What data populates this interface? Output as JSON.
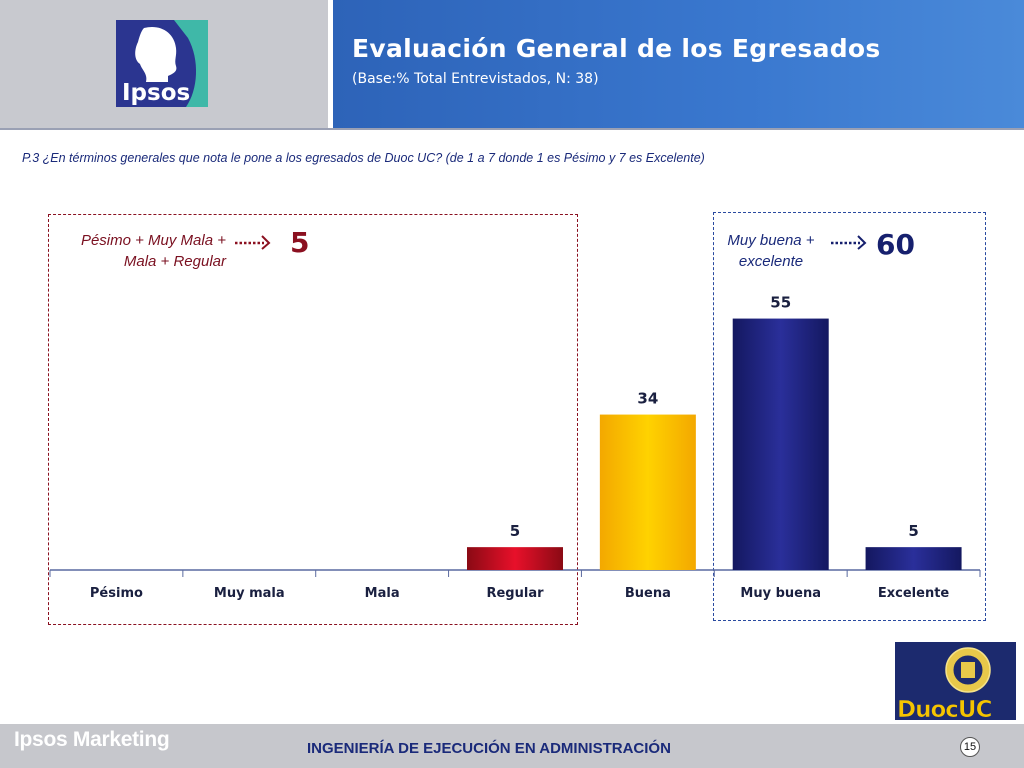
{
  "header": {
    "title": "Evaluación General de los Egresados",
    "subtitle": "(Base:% Total Entrevistados, N: 38)",
    "logo_text": "Ipsos"
  },
  "question": "P.3 ¿En términos generales que nota le pone a los egresados de Duoc UC? (de 1 a 7 donde 1 es Pésimo y 7 es Excelente)",
  "summary": {
    "negative_label_line1": "Pésimo + Muy Mala +",
    "negative_label_line2": "Mala + Regular",
    "negative_value": "5",
    "positive_label_line1": "Muy buena +",
    "positive_label_line2": "excelente",
    "positive_value": "60"
  },
  "chart_data": {
    "type": "bar",
    "categories": [
      "Pésimo",
      "Muy mala",
      "Mala",
      "Regular",
      "Buena",
      "Muy buena",
      "Excelente"
    ],
    "values": [
      null,
      null,
      null,
      5,
      34,
      55,
      5
    ],
    "data_labels": [
      "",
      "",
      "",
      "5",
      "34",
      "55",
      "5"
    ],
    "ylim": [
      0,
      70
    ],
    "bar_colors": [
      "#c8102e",
      "#c8102e",
      "#c8102e",
      "#c8102e",
      "#ffc200",
      "#1f2280",
      "#1f2280"
    ]
  },
  "duoc_logo_text": "DuocUC",
  "footer": {
    "brand": "Ipsos Marketing",
    "text": "INGENIERÍA DE EJECUCIÓN EN ADMINISTRACIÓN",
    "page": "15"
  },
  "colors": {
    "header_blue": "#3a78cf",
    "header_gray": "#c8c9cf",
    "negative": "#8b1020",
    "positive": "#16206e",
    "footer_gray": "#c6c7cc"
  }
}
